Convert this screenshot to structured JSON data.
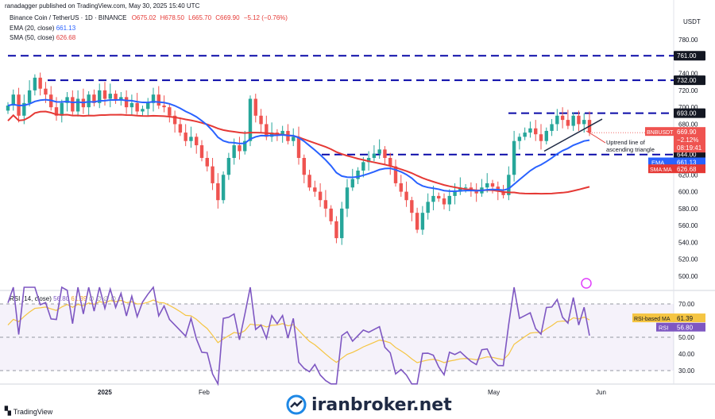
{
  "header": {
    "publisher": "ranadagger published on TradingView.com, May 30, 2025 15:40 UTC",
    "symbol": "Binance Coin / TetherUS · 1D · BINANCE",
    "o": "O675.02",
    "h": "H678.50",
    "l": "L665.70",
    "c": "C669.90",
    "chg": "−5.12 (−0.76%)"
  },
  "indicators": {
    "ema_label": "EMA (20, close)",
    "ema_value": "661.13",
    "sma_label": "SMA (50, close)",
    "sma_value": "626.68",
    "rsi_label": "RSI (14, close)",
    "rsi_value": "56.80",
    "rsi_ma_value": "61.39",
    "rsi_zeros": "∅ ∅ ∅ ∅ ∅"
  },
  "price_axis": {
    "currency": "USDT",
    "ticks": [
      "780.00",
      "760.00",
      "740.00",
      "720.00",
      "700.00",
      "680.00",
      "660.00",
      "640.00",
      "620.00",
      "600.00",
      "580.00",
      "560.00",
      "540.00",
      "520.00",
      "500.00"
    ],
    "levels": [
      {
        "label": "761.00",
        "value": 761
      },
      {
        "label": "732.00",
        "value": 732
      },
      {
        "label": "693.00",
        "value": 693
      },
      {
        "label": "644.00",
        "value": 644
      }
    ],
    "last": {
      "symbol": "BNBUSDT",
      "price": "669.90",
      "change": "−2.12%",
      "countdown": "08:19:41"
    },
    "ema_tag": {
      "name": "EMA",
      "value": "661.13"
    },
    "sma_tag": {
      "name": "SMA:MA",
      "value": "626.68"
    }
  },
  "rsi_axis": {
    "ticks": [
      "70.00",
      "50.00",
      "40.00",
      "30.00"
    ],
    "ma_tag": {
      "name": "RSI-based MA",
      "value": "61.39"
    },
    "rsi_tag": {
      "name": "RSI",
      "value": "56.80"
    }
  },
  "time_axis": [
    "2025",
    "Feb",
    "May",
    "Jun"
  ],
  "annotation": "Uptrend line of ascending triangle",
  "footer": {
    "tv": "TradingView",
    "watermark": "iranbroker.net"
  },
  "colors": {
    "up": "#26a69a",
    "down": "#ef5350",
    "ema": "#2962ff",
    "sma": "#e53935",
    "rsi": "#7e57c2",
    "rsi_ma": "#f5c542",
    "level": "#0a0aa8"
  },
  "chart_data": {
    "type": "candlestick",
    "symbol": "BNBUSDT",
    "timeframe": "1D",
    "price_range": [
      495,
      790
    ],
    "horizontal_levels": [
      761,
      732,
      693,
      644
    ],
    "close_series": [
      702,
      715,
      690,
      705,
      720,
      735,
      722,
      715,
      700,
      690,
      705,
      712,
      695,
      710,
      700,
      715,
      705,
      720,
      710,
      716,
      708,
      712,
      700,
      705,
      695,
      698,
      705,
      715,
      702,
      700,
      690,
      680,
      670,
      660,
      665,
      655,
      640,
      630,
      610,
      590,
      620,
      640,
      655,
      648,
      660,
      710,
      690,
      680,
      665,
      670,
      668,
      672,
      660,
      665,
      640,
      620,
      605,
      600,
      590,
      580,
      565,
      545,
      580,
      605,
      615,
      625,
      635,
      640,
      645,
      650,
      640,
      630,
      610,
      600,
      590,
      575,
      555,
      575,
      588,
      595,
      592,
      585,
      595,
      600,
      605,
      605,
      602,
      598,
      605,
      610,
      606,
      600,
      596,
      620,
      660,
      665,
      670,
      675,
      668,
      660,
      672,
      680,
      690,
      685,
      678,
      690,
      680,
      685,
      670
    ],
    "ema20": {
      "name": "EMA",
      "value": 661.13
    },
    "sma50": {
      "name": "SMA",
      "value": 626.68
    },
    "rsi": {
      "name": "RSI",
      "value": 56.8,
      "ma": 61.39,
      "levels": [
        70,
        50,
        30
      ]
    }
  }
}
